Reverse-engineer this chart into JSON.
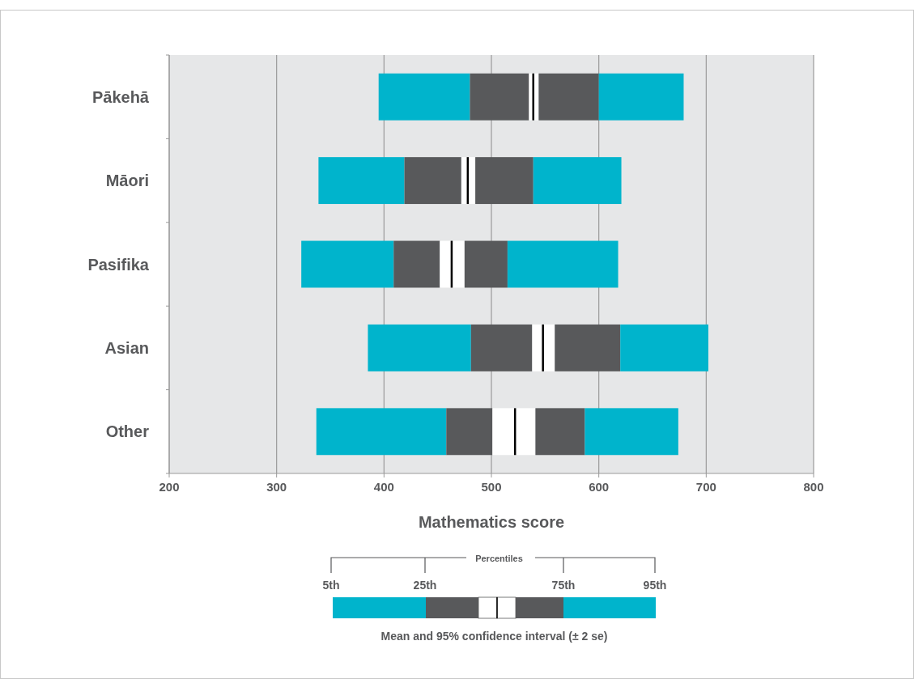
{
  "chart_data": {
    "type": "bar",
    "orientation": "horizontal",
    "xlabel": "Mathematics score",
    "categories": [
      "Pākehā",
      "Māori",
      "Pasifika",
      "Asian",
      "Other"
    ],
    "series": [
      {
        "color": "#00b4cc",
        "base": [
          395,
          339,
          323,
          385,
          337
        ],
        "values": [
          85,
          80,
          86,
          96,
          121
        ]
      },
      {
        "color": "#58595b",
        "base": [
          480,
          419,
          409,
          481,
          458
        ],
        "values": [
          55,
          53,
          43,
          57,
          43
        ]
      },
      {
        "color": "#ffffff",
        "base": [
          535,
          472,
          452,
          538,
          501
        ],
        "values": [
          4,
          6,
          11,
          10,
          21
        ]
      },
      {
        "color": "#ffffff",
        "base": [
          539,
          478,
          463,
          548,
          522
        ],
        "values": [
          5,
          7,
          12,
          11,
          19
        ]
      },
      {
        "color": "#58595b",
        "base": [
          544,
          485,
          475,
          559,
          541
        ],
        "values": [
          56,
          54,
          40,
          61,
          46
        ]
      },
      {
        "color": "#00b4cc",
        "base": [
          600,
          539,
          515,
          620,
          587
        ],
        "values": [
          79,
          82,
          103,
          82,
          87
        ]
      }
    ],
    "xlim": [
      200,
      800
    ],
    "xticks": [
      200,
      300,
      400,
      500,
      600,
      700,
      800
    ],
    "grid": "x",
    "annotations": [
      "Percentiles",
      "5th",
      "25th",
      "75th",
      "95th",
      "Mean and 95% confidence interval (± 2 se)"
    ]
  }
}
